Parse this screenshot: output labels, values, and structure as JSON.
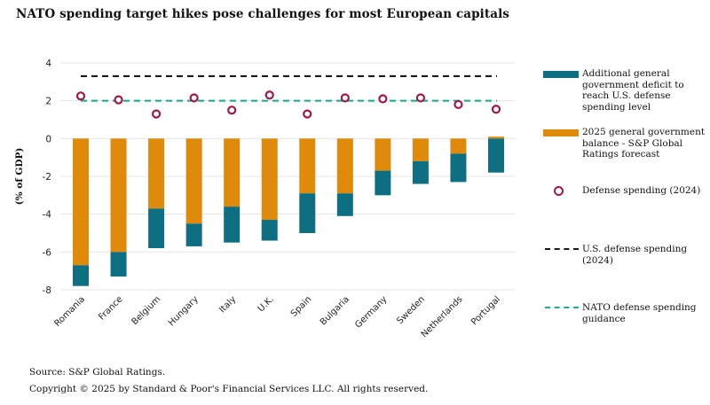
{
  "title": "NATO spending target hikes pose challenges for most European capitals",
  "legend": {
    "deficit": "Additional general government deficit to reach U.S. defense spending level",
    "balance": "2025 general government balance - S&P Global Ratings forecast",
    "defense": "Defense spending (2024)",
    "us": "U.S. defense spending (2024)",
    "nato": "NATO defense spending guidance"
  },
  "colors": {
    "balance": "#e08a0b",
    "deficit": "#0f6f82",
    "defense": "#a0194a",
    "us_line": "#1a1a1a",
    "nato_line": "#1bb08f",
    "grid": "#e4e4e4"
  },
  "chart_data": {
    "type": "bar",
    "stacked": true,
    "ylabel": "(% of GDP)",
    "ylim": [
      -8,
      4
    ],
    "yticks": [
      4,
      2,
      0,
      -2,
      -4,
      -6,
      -8
    ],
    "categories": [
      "Romania",
      "France",
      "Belgium",
      "Hungary",
      "Italy",
      "U.K.",
      "Spain",
      "Bulgaria",
      "Germany",
      "Sweden",
      "Netherlands",
      "Portugal"
    ],
    "series": [
      {
        "name": "2025 general government balance - S&P Global Ratings forecast",
        "values": [
          -6.7,
          -6.0,
          -3.7,
          -4.5,
          -3.6,
          -4.3,
          -2.9,
          -2.9,
          -1.7,
          -1.2,
          -0.8,
          0.1
        ]
      },
      {
        "name": "Additional general government deficit to reach U.S. defense spending level",
        "values": [
          -1.1,
          -1.3,
          -2.1,
          -1.2,
          -1.9,
          -1.1,
          -2.1,
          -1.2,
          -1.3,
          -1.2,
          -1.5,
          -1.8
        ]
      },
      {
        "name": "Defense spending (2024)",
        "values": [
          2.25,
          2.05,
          1.3,
          2.15,
          1.5,
          2.3,
          1.3,
          2.15,
          2.1,
          2.15,
          1.8,
          1.55
        ]
      }
    ],
    "reference_lines": [
      {
        "name": "U.S. defense spending (2024)",
        "value": 3.3
      },
      {
        "name": "NATO defense spending guidance",
        "value": 2.0
      }
    ],
    "grid": true,
    "legend_position": "right"
  },
  "footer": {
    "source": "Source: S&P Global Ratings.",
    "copyright": "Copyright © 2025 by Standard & Poor's Financial Services LLC. All rights reserved."
  }
}
